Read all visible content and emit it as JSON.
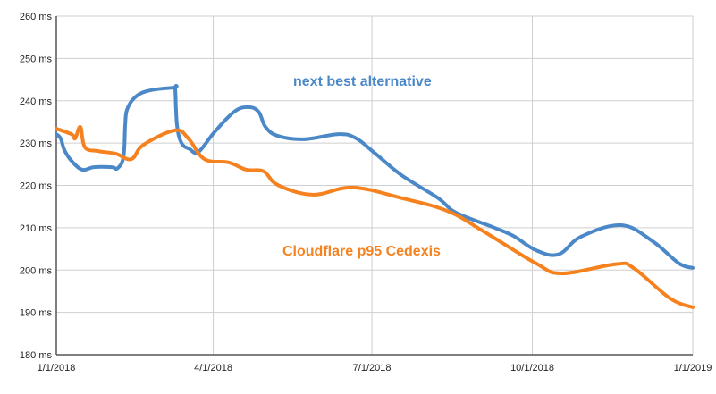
{
  "chart_data": {
    "type": "line",
    "title": "",
    "xlabel": "",
    "ylabel": "",
    "ylim": [
      180,
      260
    ],
    "xlim_days": [
      0,
      365
    ],
    "grid": true,
    "y_ticks": [
      "180 ms",
      "190 ms",
      "200 ms",
      "210 ms",
      "220 ms",
      "230 ms",
      "240 ms",
      "250 ms",
      "260 ms"
    ],
    "y_tick_values": [
      180,
      190,
      200,
      210,
      220,
      230,
      240,
      250,
      260
    ],
    "x_ticks": [
      "1/1/2018",
      "4/1/2018",
      "7/1/2018",
      "10/1/2018",
      "1/1/2019"
    ],
    "x_tick_values": [
      0,
      90,
      181,
      273,
      365
    ],
    "series": [
      {
        "name": "next best alternative",
        "color": "#4b88c8",
        "x": [
          0,
          2.5,
          4.6,
          8.7,
          14.9,
          21.5,
          31.8,
          35,
          38.5,
          39.5,
          40.5,
          44.6,
          52.3,
          67.7,
          68.2,
          69.2,
          71.8,
          76.4,
          81.5,
          90.7,
          102,
          110,
          116,
          120,
          127,
          142,
          162,
          172,
          183,
          198,
          219,
          229,
          250,
          262,
          275,
          288,
          301,
          324,
          342,
          357,
          365
        ],
        "values": [
          232.1,
          231.1,
          228.4,
          225.8,
          223.7,
          224.3,
          224.3,
          224,
          226.7,
          234.3,
          237.8,
          240.6,
          242.3,
          243.1,
          242.7,
          234.3,
          230,
          228.6,
          227.9,
          232.6,
          237.4,
          238.5,
          237.4,
          233.8,
          231.7,
          230.9,
          232.1,
          231.1,
          227.5,
          222.4,
          217,
          213.6,
          210.2,
          208.1,
          204.7,
          203.7,
          207.9,
          210.6,
          206.8,
          201.6,
          200.5
        ]
      },
      {
        "name": "Cloudflare p95 Cedexis",
        "color": "#f5821f",
        "x": [
          0,
          8.7,
          10.8,
          13.8,
          16.4,
          24,
          34,
          43,
          50,
          68,
          75.7,
          85,
          99,
          109,
          119,
          127,
          147,
          170,
          198,
          224,
          244,
          275,
          290,
          321,
          331,
          352,
          365
        ],
        "values": [
          233.4,
          232.1,
          231.1,
          233.8,
          229,
          228.1,
          227.5,
          226.2,
          229.6,
          233,
          231.1,
          226.2,
          225.4,
          223.7,
          223.3,
          220.1,
          217.8,
          219.5,
          217,
          214,
          209.4,
          201.6,
          199.2,
          201.4,
          200.5,
          193.3,
          191.2
        ]
      }
    ]
  }
}
